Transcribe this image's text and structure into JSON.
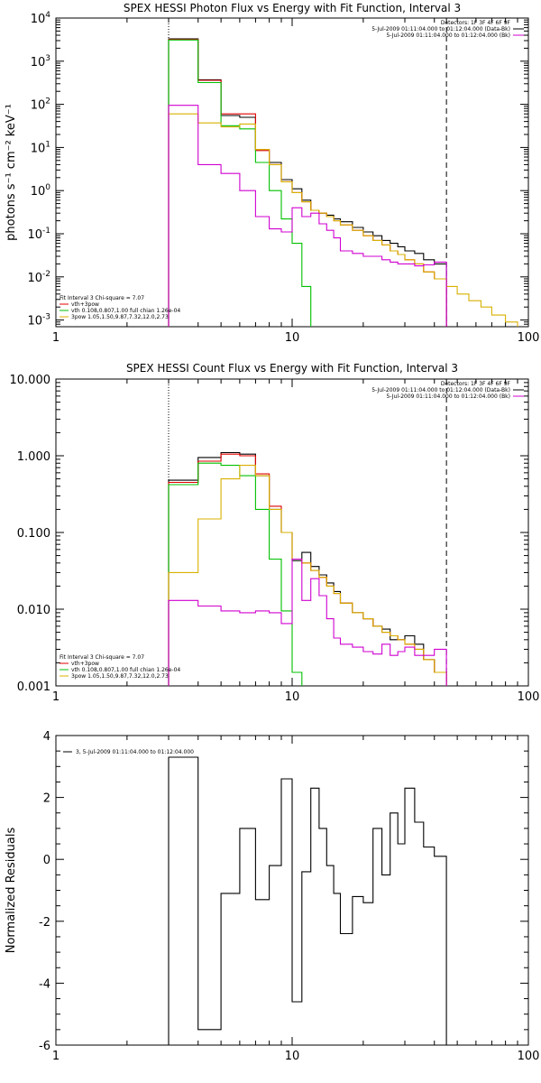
{
  "chart_data": [
    {
      "type": "line",
      "title": "SPEX HESSI Photon Flux vs Energy with Fit Function, Interval 3",
      "ylabel": "photons s⁻¹ cm⁻² keV⁻¹",
      "xlabel": "",
      "xscale": "log",
      "yscale": "log",
      "xlim": [
        1,
        100
      ],
      "ylim": [
        0.0007,
        10000
      ],
      "x_ticks": [
        "1",
        "10",
        "100"
      ],
      "y_ticks": [
        {
          "v": 10000,
          "b": "10",
          "e": "4"
        },
        {
          "v": 1000,
          "b": "10",
          "e": "3"
        },
        {
          "v": 100,
          "b": "10",
          "e": "2"
        },
        {
          "v": 10,
          "b": "10",
          "e": "1"
        },
        {
          "v": 1,
          "b": "10",
          "e": "0"
        },
        {
          "v": 0.1,
          "b": "10",
          "e": "-1"
        },
        {
          "v": 0.01,
          "b": "10",
          "e": "-2"
        },
        {
          "v": 0.001,
          "b": "10",
          "e": "-3"
        }
      ],
      "vlines": [
        {
          "x": 3.0,
          "style": "dotted"
        },
        {
          "x": 45,
          "style": "dashed"
        }
      ],
      "legend_top": [
        {
          "text": "Detectors: 1F 3F 4F 6F 9F",
          "color": ""
        },
        {
          "text": "5-Jul-2009 01:11:04.000 to 01:12:04.000 (Data-Bk)",
          "color": "#000000"
        },
        {
          "text": "5-Jul-2009 01:11:04.000 to 01:12:04.000 (Bk)",
          "color": "#d000d0"
        }
      ],
      "legend_bottom": [
        {
          "text": "Fit Interval 3   Chi-square = 7.07",
          "color": ""
        },
        {
          "text": "vth+3pow",
          "color": "#e00000"
        },
        {
          "text": "vth 0.108,0.807,1.00  full chian 1.26e-04",
          "color": "#00c000"
        },
        {
          "text": "3pow  1.05,1.50,9.87,7.32,12.0,2.73",
          "color": "#d8b000"
        }
      ],
      "edges": [
        3.0,
        4.0,
        5.0,
        6.0,
        7.0,
        8.0,
        9.0,
        10.0,
        11.0,
        12.0,
        13.0,
        14.0,
        15.0,
        16.0,
        18.0,
        20.0,
        22.0,
        24.0,
        26.0,
        28.0,
        30.0,
        33.0,
        36.0,
        40.0,
        45.0,
        50.0,
        56.0,
        63.0,
        70.0,
        80.0,
        90.0
      ],
      "series": [
        {
          "name": "5-Jul-2009 01:11:04.000 to 01:12:04.000 (Data-Bk)",
          "color": "#000000",
          "values": [
            3300,
            370,
            55,
            50,
            9,
            4.5,
            1.8,
            1.1,
            0.6,
            0.35,
            0.3,
            0.27,
            0.22,
            0.19,
            0.14,
            0.11,
            0.09,
            0.07,
            0.06,
            0.05,
            0.04,
            0.035,
            0.025,
            0.02,
            null,
            null,
            null,
            null,
            null,
            null
          ]
        },
        {
          "name": "vth+3pow",
          "color": "#e00000",
          "values": [
            3200,
            360,
            60,
            60,
            8.5,
            4.0,
            1.6,
            0.9,
            0.55,
            0.35,
            0.3,
            0.25,
            0.2,
            0.16,
            0.12,
            0.09,
            0.07,
            0.055,
            0.04,
            0.033,
            0.025,
            0.02,
            0.013,
            0.009,
            null,
            null,
            null,
            null,
            null,
            null
          ]
        },
        {
          "name": "vth",
          "color": "#00c000",
          "values": [
            3100,
            320,
            32,
            27,
            4.5,
            1.0,
            0.22,
            0.06,
            0.006,
            null,
            null,
            null,
            null,
            null,
            null,
            null,
            null,
            null,
            null,
            null,
            null,
            null,
            null,
            null,
            null,
            null,
            null,
            null,
            null,
            null
          ]
        },
        {
          "name": "3pow",
          "color": "#d8b000",
          "values": [
            60,
            37,
            30,
            35,
            9,
            4.0,
            1.6,
            0.9,
            0.55,
            0.35,
            0.3,
            0.25,
            0.2,
            0.16,
            0.12,
            0.09,
            0.07,
            0.055,
            0.04,
            0.033,
            0.025,
            0.02,
            0.013,
            0.009,
            0.006,
            0.004,
            0.0028,
            0.002,
            0.0013,
            0.0009
          ]
        },
        {
          "name": "5-Jul-2009 01:11:04.000 to 01:12:04.000 (Bk)",
          "color": "#d000d0",
          "values": [
            95,
            4.0,
            2.5,
            1.0,
            0.25,
            0.13,
            0.11,
            0.4,
            0.25,
            0.3,
            0.17,
            0.12,
            0.08,
            0.04,
            0.035,
            0.03,
            0.03,
            0.025,
            0.022,
            0.02,
            0.02,
            0.018,
            0.019,
            0.022,
            null,
            null,
            null,
            null,
            null,
            null
          ]
        }
      ]
    },
    {
      "type": "line",
      "title": "SPEX HESSI Count Flux vs Energy with Fit Function, Interval 3",
      "ylabel": "",
      "xlabel": "",
      "xscale": "log",
      "yscale": "log",
      "xlim": [
        1,
        100
      ],
      "ylim": [
        0.001,
        10
      ],
      "x_ticks": [
        "1",
        "10",
        "100"
      ],
      "y_ticks": [
        {
          "v": 10,
          "t": "10.000"
        },
        {
          "v": 1,
          "t": "1.000"
        },
        {
          "v": 0.1,
          "t": "0.100"
        },
        {
          "v": 0.01,
          "t": "0.010"
        },
        {
          "v": 0.001,
          "t": "0.001"
        }
      ],
      "vlines": [
        {
          "x": 3.0,
          "style": "dotted"
        },
        {
          "x": 45,
          "style": "dashed"
        }
      ],
      "legend_top": [
        {
          "text": "Detectors: 1F 3F 4F 6F 9F",
          "color": ""
        },
        {
          "text": "5-Jul-2009 01:11:04.000 to 01:12:04.000 (Data-Bk)",
          "color": "#000000"
        },
        {
          "text": "5-Jul-2009 01:11:04.000 to 01:12:04.000 (Bk)",
          "color": "#d000d0"
        }
      ],
      "legend_bottom": [
        {
          "text": "Fit Interval 3   Chi-square = 7.07",
          "color": ""
        },
        {
          "text": "vth+3pow",
          "color": "#e00000"
        },
        {
          "text": "vth 0.108,0.807,1.00  full chian 1.26e-04",
          "color": "#00c000"
        },
        {
          "text": "3pow  1.05,1.50,9.87,7.32,12.0,2.73",
          "color": "#d8b000"
        }
      ],
      "edges": [
        3.0,
        4.0,
        5.0,
        6.0,
        7.0,
        8.0,
        9.0,
        10.0,
        11.0,
        12.0,
        13.0,
        14.0,
        15.0,
        16.0,
        18.0,
        20.0,
        22.0,
        24.0,
        26.0,
        28.0,
        30.0,
        33.0,
        36.0,
        40.0,
        45.0
      ],
      "series": [
        {
          "name": "5-Jul-2009 01:11:04.000 to 01:12:04.000 (Data-Bk)",
          "color": "#000000",
          "values": [
            0.48,
            0.95,
            1.1,
            1.05,
            0.55,
            0.2,
            0.1,
            0.043,
            0.055,
            0.036,
            0.028,
            0.022,
            0.017,
            0.012,
            0.009,
            0.0075,
            0.006,
            0.0055,
            0.004,
            0.004,
            0.0045,
            0.0035,
            0.0022,
            0.0015
          ]
        },
        {
          "name": "vth+3pow",
          "color": "#e00000",
          "values": [
            0.45,
            0.85,
            1.05,
            1.0,
            0.58,
            0.22,
            0.1,
            0.045,
            0.04,
            0.032,
            0.026,
            0.02,
            0.016,
            0.012,
            0.009,
            0.0075,
            0.006,
            0.005,
            0.0045,
            0.004,
            0.0035,
            0.003,
            0.0022,
            0.0015
          ]
        },
        {
          "name": "vth",
          "color": "#00c000",
          "values": [
            0.42,
            0.8,
            0.75,
            0.55,
            0.2,
            0.045,
            0.0095,
            0.0015,
            null,
            null,
            null,
            null,
            null,
            null,
            null,
            null,
            null,
            null,
            null,
            null,
            null,
            null,
            null,
            null
          ]
        },
        {
          "name": "3pow",
          "color": "#d8b000",
          "values": [
            0.03,
            0.15,
            0.5,
            0.75,
            0.55,
            0.2,
            0.1,
            0.045,
            0.04,
            0.032,
            0.026,
            0.02,
            0.016,
            0.012,
            0.009,
            0.0075,
            0.006,
            0.005,
            0.0045,
            0.004,
            0.0035,
            0.003,
            0.0022,
            0.0015
          ]
        },
        {
          "name": "5-Jul-2009 01:11:04.000 to 01:12:04.000 (Bk)",
          "color": "#d000d0",
          "values": [
            0.013,
            0.011,
            0.0095,
            0.009,
            0.0095,
            0.009,
            0.0065,
            0.045,
            0.013,
            0.025,
            0.015,
            0.0075,
            0.0042,
            0.0035,
            0.0032,
            0.0028,
            0.0026,
            0.0035,
            0.0025,
            0.0028,
            0.0032,
            0.0025,
            0.0025,
            0.003
          ]
        }
      ]
    },
    {
      "type": "line",
      "title": "",
      "ylabel": "Normalized Residuals",
      "xlabel": "",
      "xscale": "log",
      "yscale": "linear",
      "xlim": [
        1,
        100
      ],
      "ylim": [
        -6,
        4
      ],
      "x_ticks": [
        "1",
        "10",
        "100"
      ],
      "y_ticks": [
        {
          "v": 4,
          "t": "4"
        },
        {
          "v": 2,
          "t": "2"
        },
        {
          "v": 0,
          "t": "0"
        },
        {
          "v": -2,
          "t": "-2"
        },
        {
          "v": -4,
          "t": "-4"
        },
        {
          "v": -6,
          "t": "-6"
        }
      ],
      "legend_top_left": {
        "text": "3,  5-Jul-2009 01:11:04.000 to 01:12:04.000",
        "color": "#000000"
      },
      "edges": [
        3.0,
        4.0,
        5.0,
        6.0,
        7.0,
        8.0,
        9.0,
        10.0,
        11.0,
        12.0,
        13.0,
        14.0,
        15.0,
        16.0,
        18.0,
        20.0,
        22.0,
        24.0,
        26.0,
        28.0,
        30.0,
        33.0,
        36.0,
        40.0,
        45.0
      ],
      "series": [
        {
          "name": "3,  5-Jul-2009 01:11:04.000 to 01:12:04.000",
          "color": "#000000",
          "values": [
            3.3,
            -5.5,
            -1.1,
            1.0,
            -1.3,
            -0.2,
            2.6,
            -4.6,
            -0.4,
            2.3,
            1.0,
            -0.2,
            -1.1,
            -2.4,
            -1.2,
            -1.4,
            1.0,
            -0.5,
            1.5,
            0.5,
            2.3,
            1.2,
            0.4,
            0.1
          ]
        }
      ]
    }
  ]
}
